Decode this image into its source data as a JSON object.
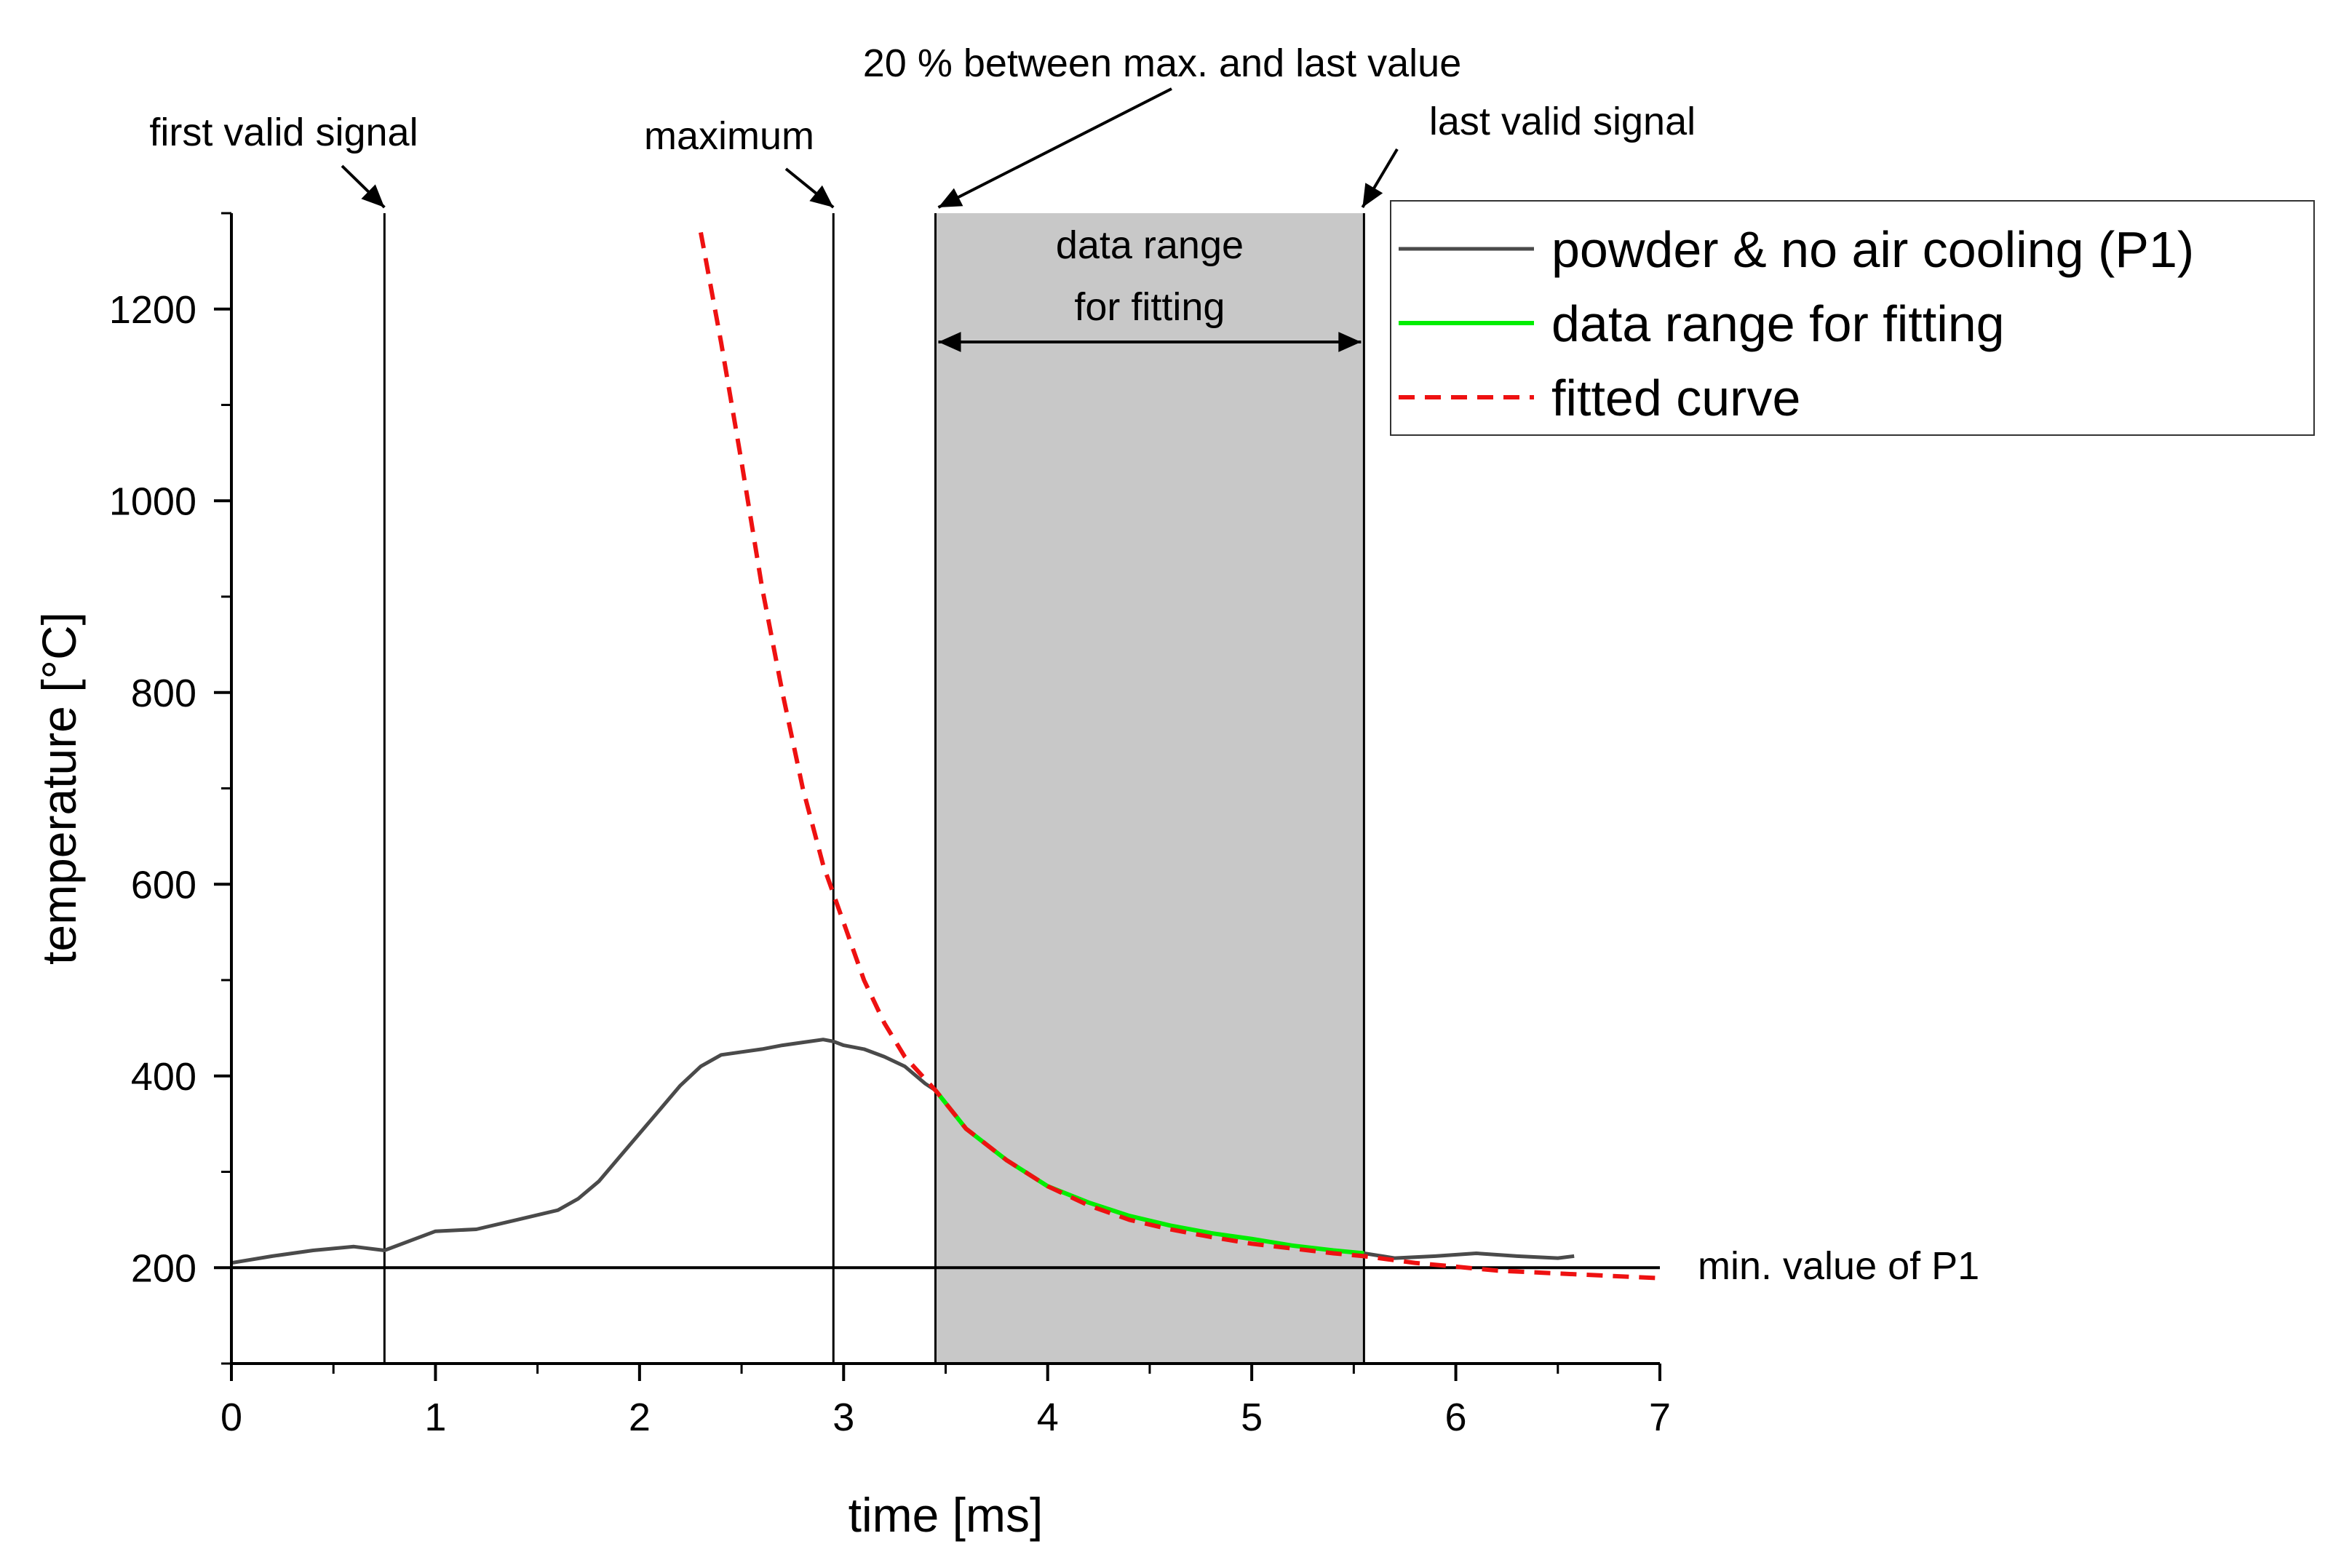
{
  "chart_data": {
    "type": "line",
    "title": "",
    "xlabel": "time [ms]",
    "ylabel": "temperature [°C]",
    "xlim": [
      0,
      7
    ],
    "ylim": [
      100,
      1300
    ],
    "xticks": [
      "0",
      "1",
      "2",
      "3",
      "4",
      "5",
      "6",
      "7"
    ],
    "yticks": [
      "200",
      "400",
      "600",
      "800",
      "1000",
      "1200"
    ],
    "grid": false,
    "legend_position": "top-right",
    "series": [
      {
        "name": "powder & no air cooling (P1)",
        "color": "#4a4a4a",
        "style": "solid",
        "x": [
          0.0,
          0.2,
          0.4,
          0.6,
          0.75,
          0.9,
          1.0,
          1.2,
          1.4,
          1.6,
          1.7,
          1.8,
          1.9,
          2.0,
          2.1,
          2.2,
          2.3,
          2.4,
          2.5,
          2.6,
          2.7,
          2.8,
          2.9,
          2.95,
          3.0,
          3.1,
          3.2,
          3.3,
          3.4,
          3.45,
          3.6,
          3.8,
          4.0,
          4.2,
          4.4,
          4.6,
          4.8,
          5.0,
          5.2,
          5.4,
          5.55,
          5.7,
          5.9,
          6.1,
          6.3,
          6.5,
          6.58
        ],
        "y": [
          205,
          212,
          218,
          222,
          218,
          230,
          238,
          240,
          250,
          260,
          272,
          290,
          315,
          340,
          365,
          390,
          410,
          422,
          425,
          428,
          432,
          435,
          438,
          436,
          432,
          428,
          420,
          410,
          392,
          385,
          345,
          312,
          285,
          268,
          254,
          244,
          236,
          230,
          223,
          218,
          215,
          210,
          212,
          215,
          212,
          210,
          212
        ]
      },
      {
        "name": "data range for fitting",
        "color": "#00ee00",
        "style": "solid",
        "x": [
          3.45,
          3.6,
          3.8,
          4.0,
          4.2,
          4.4,
          4.6,
          4.8,
          5.0,
          5.2,
          5.4,
          5.55
        ],
        "y": [
          385,
          345,
          312,
          285,
          268,
          254,
          244,
          236,
          230,
          223,
          218,
          215
        ]
      },
      {
        "name": "fitted curve",
        "color": "#ee1111",
        "style": "dashed",
        "x": [
          2.3,
          2.4,
          2.5,
          2.6,
          2.7,
          2.8,
          2.9,
          3.0,
          3.1,
          3.2,
          3.3,
          3.45,
          3.6,
          3.8,
          4.0,
          4.2,
          4.4,
          4.6,
          4.8,
          5.0,
          5.2,
          5.4,
          5.55,
          5.8,
          6.0,
          6.2,
          6.5,
          6.8,
          7.0
        ],
        "y": [
          1280,
          1165,
          1040,
          910,
          800,
          700,
          620,
          560,
          500,
          455,
          420,
          385,
          345,
          312,
          285,
          265,
          250,
          240,
          232,
          225,
          220,
          215,
          212,
          205,
          201,
          197,
          194,
          191,
          189
        ]
      }
    ],
    "reference_lines": [
      {
        "orientation": "vertical",
        "x": 0.75,
        "label": "first valid signal"
      },
      {
        "orientation": "vertical",
        "x": 2.95,
        "label": "maximum"
      },
      {
        "orientation": "vertical",
        "x": 3.45,
        "label": "20 % between max. and last value"
      },
      {
        "orientation": "vertical",
        "x": 5.55,
        "label": "last valid signal"
      },
      {
        "orientation": "horizontal",
        "y": 200,
        "label": "min. value of P1"
      }
    ],
    "shaded_region": {
      "x0": 3.45,
      "x1": 5.55,
      "color": "#c8c8c8",
      "label_line1": "data range",
      "label_line2": "for fitting"
    }
  }
}
